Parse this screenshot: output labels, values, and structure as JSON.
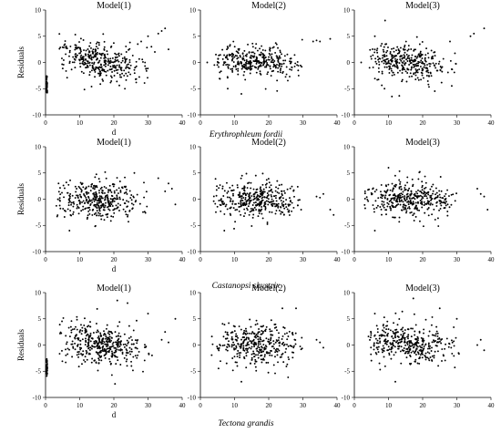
{
  "ylabel": "Residuals",
  "xlabel": "d",
  "colors": {
    "marker": "#000000",
    "axis": "#000000"
  },
  "chart_data": [
    {
      "type": "scatter",
      "species": "Erythrophleum fordii",
      "panels": [
        {
          "title": "Model(1)",
          "xlim": [
            0,
            40
          ],
          "ylim": [
            -10,
            10
          ],
          "xticks": [
            "0",
            "10",
            "20",
            "30",
            "40"
          ],
          "yticks": [
            "-10",
            "-5",
            "0",
            "5",
            "10"
          ],
          "seed": 11,
          "n": 360,
          "xrange": [
            4,
            30
          ],
          "xcenter": 15,
          "ysd": 1.6,
          "trend": [
            2,
            -2
          ],
          "cluster0": true,
          "extra": [
            [
              31,
              3
            ],
            [
              33,
              5.5
            ],
            [
              34,
              6
            ],
            [
              35,
              6.5
            ],
            [
              30,
              5
            ],
            [
              28,
              4
            ],
            [
              36,
              2.5
            ],
            [
              27,
              3.5
            ],
            [
              32,
              2
            ]
          ]
        },
        {
          "title": "Model(2)",
          "xlim": [
            0,
            40
          ],
          "ylim": [
            -10,
            10
          ],
          "xticks": [
            "0",
            "10",
            "20",
            "30",
            "40"
          ],
          "yticks": [
            "-10",
            "-5",
            "0",
            "5",
            "10"
          ],
          "seed": 23,
          "n": 340,
          "xrange": [
            4,
            30
          ],
          "xcenter": 16,
          "ysd": 1.4,
          "trend": [
            0,
            0
          ],
          "cluster0": false,
          "extra": [
            [
              33,
              4
            ],
            [
              34,
              4.2
            ],
            [
              35,
              4
            ],
            [
              38,
              4.5
            ],
            [
              2,
              0
            ],
            [
              12,
              -6
            ],
            [
              8,
              -5
            ]
          ]
        },
        {
          "title": "Model(3)",
          "xlim": [
            0,
            40
          ],
          "ylim": [
            -10,
            10
          ],
          "xticks": [
            "0",
            "10",
            "20",
            "30",
            "40"
          ],
          "yticks": [
            "-10",
            "-5",
            "0",
            "5",
            "10"
          ],
          "seed": 37,
          "n": 340,
          "xrange": [
            4,
            30
          ],
          "xcenter": 15,
          "ysd": 1.7,
          "trend": [
            1,
            -1
          ],
          "cluster0": false,
          "extra": [
            [
              34,
              5
            ],
            [
              35,
              5.5
            ],
            [
              38,
              6.5
            ],
            [
              9,
              8
            ],
            [
              11,
              -6.5
            ],
            [
              2,
              0
            ],
            [
              6,
              5
            ],
            [
              28,
              4
            ]
          ]
        }
      ]
    },
    {
      "type": "scatter",
      "species": "Castanopsi shystrix",
      "panels": [
        {
          "title": "Model(1)",
          "xlim": [
            0,
            40
          ],
          "ylim": [
            -10,
            10
          ],
          "xticks": [
            "0",
            "10",
            "20",
            "30",
            "40"
          ],
          "yticks": [
            "-10",
            "-5",
            "0",
            "5",
            "10"
          ],
          "seed": 41,
          "n": 380,
          "xrange": [
            3,
            30
          ],
          "xcenter": 16,
          "ysd": 1.8,
          "trend": [
            0,
            0
          ],
          "cluster0": false,
          "extra": [
            [
              36,
              3
            ],
            [
              37,
              2
            ],
            [
              35,
              1.5
            ],
            [
              38,
              -1
            ],
            [
              7,
              -6
            ],
            [
              33,
              4
            ],
            [
              26,
              5
            ]
          ]
        },
        {
          "title": "Model(2)",
          "xlim": [
            0,
            40
          ],
          "ylim": [
            -10,
            10
          ],
          "xticks": [
            "0",
            "10",
            "20",
            "30",
            "40"
          ],
          "yticks": [
            "-10",
            "-5",
            "0",
            "5",
            "10"
          ],
          "seed": 53,
          "n": 380,
          "xrange": [
            3,
            30
          ],
          "xcenter": 16,
          "ysd": 1.5,
          "trend": [
            0,
            0
          ],
          "cluster0": false,
          "extra": [
            [
              34,
              0.5
            ],
            [
              35,
              0.3
            ],
            [
              36,
              1
            ],
            [
              38,
              -2
            ],
            [
              39,
              -3
            ],
            [
              7,
              -6
            ]
          ]
        },
        {
          "title": "Model(3)",
          "xlim": [
            0,
            40
          ],
          "ylim": [
            -10,
            10
          ],
          "xticks": [
            "0",
            "10",
            "20",
            "30",
            "40"
          ],
          "yticks": [
            "-10",
            "-5",
            "0",
            "5",
            "10"
          ],
          "seed": 67,
          "n": 380,
          "xrange": [
            3,
            30
          ],
          "xcenter": 16,
          "ysd": 1.6,
          "trend": [
            0,
            0
          ],
          "cluster0": false,
          "extra": [
            [
              36,
              2
            ],
            [
              37,
              1
            ],
            [
              38,
              0.5
            ],
            [
              39,
              -2
            ],
            [
              10,
              6
            ],
            [
              6,
              -6
            ]
          ]
        }
      ]
    },
    {
      "type": "scatter",
      "species": "Tectona grandis",
      "panels": [
        {
          "title": "Model(1)",
          "xlim": [
            0,
            40
          ],
          "ylim": [
            -10,
            10
          ],
          "xticks": [
            "0",
            "10",
            "20",
            "30",
            "40"
          ],
          "yticks": [
            "-10",
            "-5",
            "0",
            "5",
            "10"
          ],
          "seed": 79,
          "n": 400,
          "xrange": [
            4,
            32
          ],
          "xcenter": 16,
          "ysd": 1.9,
          "trend": [
            1.5,
            -1.5
          ],
          "cluster0": true,
          "extra": [
            [
              34,
              1
            ],
            [
              35,
              2.5
            ],
            [
              36,
              0.5
            ],
            [
              38,
              5
            ],
            [
              24,
              8
            ],
            [
              21,
              8.5
            ],
            [
              30,
              6
            ]
          ]
        },
        {
          "title": "Model(2)",
          "xlim": [
            0,
            40
          ],
          "ylim": [
            -10,
            10
          ],
          "xticks": [
            "0",
            "10",
            "20",
            "30",
            "40"
          ],
          "yticks": [
            "-10",
            "-5",
            "0",
            "5",
            "10"
          ],
          "seed": 89,
          "n": 360,
          "xrange": [
            3,
            30
          ],
          "xcenter": 16,
          "ysd": 1.9,
          "trend": [
            0,
            0
          ],
          "cluster0": false,
          "extra": [
            [
              34,
              1
            ],
            [
              35,
              0.5
            ],
            [
              36,
              -0.5
            ],
            [
              24,
              7
            ],
            [
              12,
              -7
            ],
            [
              28,
              7
            ]
          ]
        },
        {
          "title": "Model(3)",
          "xlim": [
            0,
            40
          ],
          "ylim": [
            -10,
            10
          ],
          "xticks": [
            "0",
            "10",
            "20",
            "30",
            "40"
          ],
          "yticks": [
            "-10",
            "-5",
            "0",
            "5",
            "10"
          ],
          "seed": 97,
          "n": 380,
          "xrange": [
            4,
            32
          ],
          "xcenter": 15,
          "ysd": 1.8,
          "trend": [
            1,
            -1
          ],
          "cluster0": false,
          "extra": [
            [
              36,
              0
            ],
            [
              37,
              1
            ],
            [
              38,
              -1
            ],
            [
              6,
              6
            ],
            [
              25,
              7
            ],
            [
              30,
              5
            ],
            [
              12,
              -7
            ]
          ]
        }
      ]
    }
  ]
}
